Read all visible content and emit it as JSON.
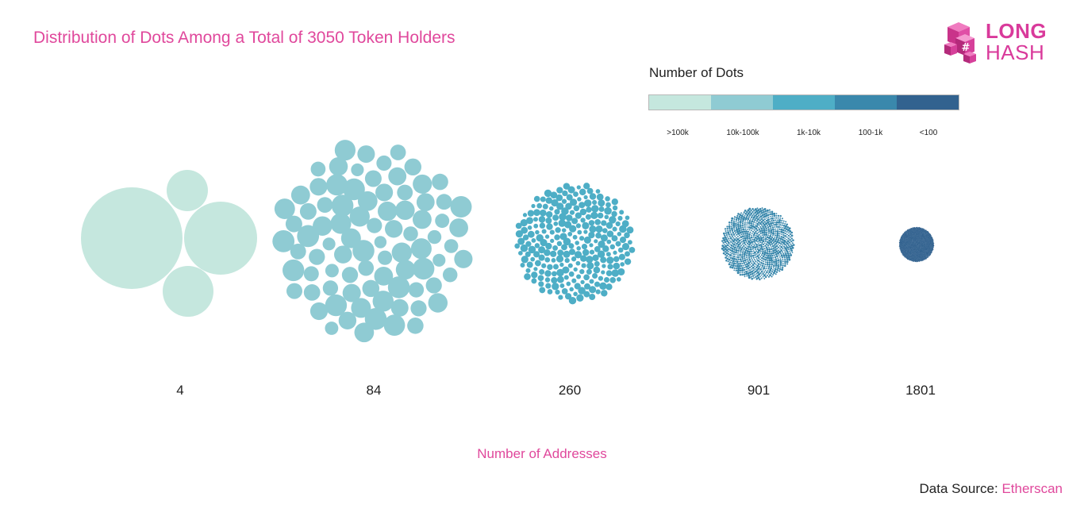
{
  "title": "Distribution of Dots Among a Total of 3050 Token Holders",
  "logo": {
    "line1": "LONG",
    "line2": "HASH"
  },
  "legend": {
    "title": "Number of Dots",
    "items": [
      {
        "label": ">100k",
        "color": "#c5e7de"
      },
      {
        "label": "10k-100k",
        "color": "#8fcbd3"
      },
      {
        "label": "1k-10k",
        "color": "#4eaec6"
      },
      {
        "label": "100-1k",
        "color": "#3a88ac"
      },
      {
        "label": "<100",
        "color": "#32628f"
      }
    ]
  },
  "chart_data": {
    "type": "bubble-pack",
    "title": "Distribution of Dots Among a Total of 3050 Token Holders",
    "xlabel": "Number of Addresses",
    "categories": [
      ">100k",
      "10k-100k",
      "1k-10k",
      "100-1k",
      "<100"
    ],
    "counts": [
      4,
      84,
      260,
      901,
      1801
    ],
    "colors": [
      "#c5e7de",
      "#8fcbd3",
      "#4eaec6",
      "#3a88ac",
      "#32628f"
    ]
  },
  "x_axis": {
    "title": "Number of Addresses",
    "labels": [
      "4",
      "84",
      "260",
      "901",
      "1801"
    ]
  },
  "source": {
    "prefix": "Data Source: ",
    "name": "Etherscan"
  }
}
